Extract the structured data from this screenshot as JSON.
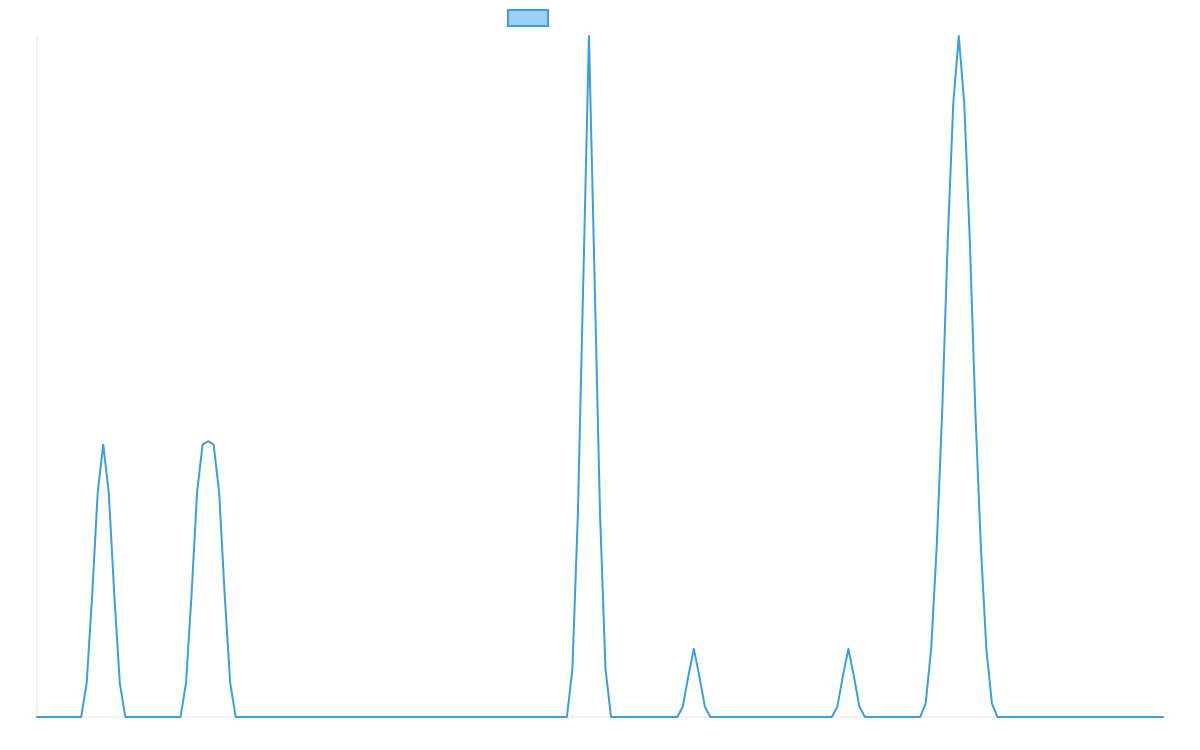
{
  "chart_data": {
    "type": "line",
    "title": "",
    "xlabel": "",
    "ylabel": "",
    "xlim": [
      0,
      102
    ],
    "ylim": [
      0,
      1
    ],
    "grid": false,
    "legend": "top-center",
    "series": [
      {
        "color": "#3a9fdc",
        "fill_color": "#9ad0f5",
        "x": [
          0,
          4,
          4.5,
          5,
          5.5,
          6,
          6.5,
          7,
          7.5,
          8,
          8.5,
          9,
          12,
          12.5,
          13,
          13.5,
          14,
          14.5,
          15,
          15.5,
          16,
          16.5,
          17,
          17.5,
          18,
          18.5,
          19,
          19.5,
          20,
          48,
          48.5,
          49,
          49.5,
          50,
          50.5,
          51,
          51.5,
          52,
          52.5,
          53,
          53.5,
          54,
          58,
          58.5,
          59,
          59.5,
          60,
          60.5,
          61,
          61.5,
          62,
          72,
          72.5,
          73,
          73.5,
          74,
          74.5,
          75,
          75.5,
          76,
          80,
          80.5,
          81,
          81.5,
          82,
          82.5,
          83,
          83.5,
          84,
          84.5,
          85,
          85.5,
          86,
          86.5,
          87,
          87.5,
          88,
          88.5,
          89,
          102
        ],
        "y": [
          0,
          0,
          0.05,
          0.18,
          0.33,
          0.4,
          0.33,
          0.18,
          0.05,
          0,
          0,
          0,
          0,
          0,
          0,
          0.05,
          0.18,
          0.33,
          0.4,
          0.405,
          0.4,
          0.33,
          0.18,
          0.05,
          0,
          0,
          0,
          0,
          0,
          0,
          0.07,
          0.3,
          0.65,
          1,
          0.65,
          0.3,
          0.07,
          0,
          0,
          0,
          0,
          0,
          0,
          0.015,
          0.06,
          0.1,
          0.06,
          0.015,
          0,
          0,
          0,
          0,
          0.015,
          0.06,
          0.1,
          0.06,
          0.015,
          0,
          0,
          0,
          0,
          0.02,
          0.1,
          0.25,
          0.45,
          0.7,
          0.9,
          1,
          0.9,
          0.7,
          0.45,
          0.25,
          0.1,
          0.02,
          0,
          0,
          0,
          0,
          0,
          0
        ]
      }
    ]
  }
}
